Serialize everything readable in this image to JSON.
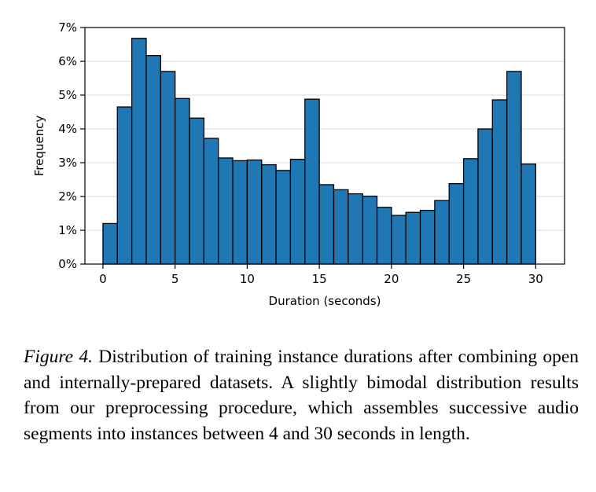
{
  "chart_data": {
    "type": "bar",
    "xlabel": "Duration (seconds)",
    "ylabel": "Frequency",
    "xlim": [
      -1.25,
      32.0
    ],
    "ylim": [
      0,
      7
    ],
    "bin_width": 1,
    "x_ticks": [
      0,
      5,
      10,
      15,
      20,
      25,
      30
    ],
    "y_ticks": [
      "0%",
      "1%",
      "2%",
      "3%",
      "4%",
      "5%",
      "6%",
      "7%"
    ],
    "bins": [
      0.5,
      1.5,
      2.5,
      3.5,
      4.5,
      5.5,
      6.5,
      7.5,
      8.5,
      9.5,
      10.5,
      11.5,
      12.5,
      13.5,
      14.5,
      15.5,
      16.5,
      17.5,
      18.5,
      19.5,
      20.5,
      21.5,
      22.5,
      23.5,
      24.5,
      25.5,
      26.5,
      27.5,
      28.5,
      29.5
    ],
    "values": [
      1.2,
      4.65,
      6.68,
      6.17,
      5.7,
      4.9,
      4.32,
      3.72,
      3.14,
      3.06,
      3.08,
      2.94,
      2.77,
      3.1,
      4.88,
      2.35,
      2.2,
      2.08,
      2.01,
      1.68,
      1.44,
      1.53,
      1.59,
      1.88,
      2.38,
      3.12,
      4.0,
      4.86,
      5.7,
      2.96
    ],
    "bar_color": "#1f77b4",
    "grid": "horizontal"
  },
  "caption": {
    "label": "Figure 4.",
    "text": "Distribution of training instance durations after combining open and internally-prepared datasets.  A slightly bimodal distribution results from our preprocessing procedure, which assembles successive audio segments into instances between 4 and 30 seconds in length."
  }
}
